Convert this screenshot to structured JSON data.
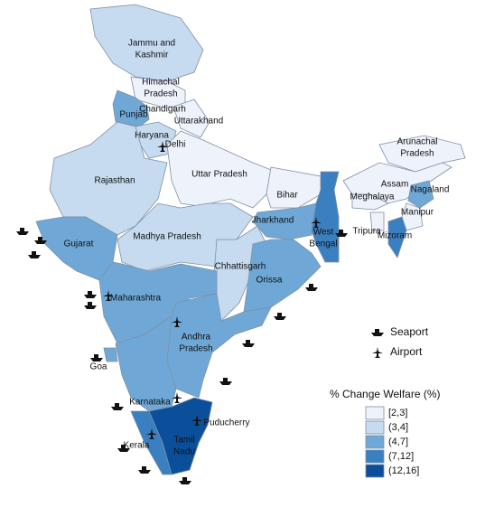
{
  "map": {
    "regions": [
      {
        "label": [
          "Jammu and",
          "Kashmir"
        ],
        "class": "(3,4]"
      },
      {
        "label": [
          "Himachal",
          "Pradesh"
        ],
        "class": "[2,3]"
      },
      {
        "label": [
          "Punjab"
        ],
        "class": "(4,7]"
      },
      {
        "label": [
          "Chandigarh"
        ]
      },
      {
        "label": [
          "Uttarakhand"
        ],
        "class": "[2,3]"
      },
      {
        "label": [
          "Haryana"
        ],
        "class": "(3,4]"
      },
      {
        "label": [
          "Delhi"
        ]
      },
      {
        "label": [
          "Rajasthan"
        ],
        "class": "(3,4]"
      },
      {
        "label": [
          "Uttar Pradesh"
        ],
        "class": "[2,3]"
      },
      {
        "label": [
          "Bihar"
        ],
        "class": "[2,3]"
      },
      {
        "label": [
          "Arunachal",
          "Pradesh"
        ],
        "class": "[2,3]"
      },
      {
        "label": [
          "Assam"
        ],
        "class": "[2,3]"
      },
      {
        "label": [
          "Meghalaya"
        ],
        "class": "[2,3]"
      },
      {
        "label": [
          "Nagaland"
        ],
        "class": "(4,7]"
      },
      {
        "label": [
          "Manipur"
        ],
        "class": "[2,3]"
      },
      {
        "label": [
          "Tripura"
        ],
        "class": "[2,3]"
      },
      {
        "label": [
          "Mizoram"
        ],
        "class": "(7,12]"
      },
      {
        "label": [
          "Gujarat"
        ],
        "class": "(4,7]"
      },
      {
        "label": [
          "Madhya Pradesh"
        ],
        "class": "(3,4]"
      },
      {
        "label": [
          "Jharkhand"
        ],
        "class": "(4,7]"
      },
      {
        "label": [
          "West",
          "Bengal"
        ],
        "class": "(7,12]"
      },
      {
        "label": [
          "Chhattisgarh"
        ],
        "class": "(3,4]"
      },
      {
        "label": [
          "Orissa"
        ],
        "class": "(4,7]"
      },
      {
        "label": [
          "Maharashtra"
        ],
        "class": "(4,7]"
      },
      {
        "label": [
          "Andhra",
          "Pradesh"
        ],
        "class": "(4,7]"
      },
      {
        "label": [
          "Goa"
        ],
        "class": "(4,7]"
      },
      {
        "label": [
          "Karnataka"
        ],
        "class": "(4,7]"
      },
      {
        "label": [
          "Puducherry"
        ]
      },
      {
        "label": [
          "Tamil",
          "Nadu"
        ],
        "class": "(12,16]"
      },
      {
        "label": [
          "Kerala"
        ],
        "class": "(7,12]"
      }
    ]
  },
  "legend": {
    "symbols": [
      "Seaport",
      "Airport"
    ],
    "title": "% Change Welfare (%)",
    "classes": [
      {
        "label": "[2,3]",
        "color": "#eef3fb"
      },
      {
        "label": "(3,4]",
        "color": "#c6dbef"
      },
      {
        "label": "(4,7]",
        "color": "#6fa8d6"
      },
      {
        "label": "(7,12]",
        "color": "#3a7fc0"
      },
      {
        "label": "(12,16]",
        "color": "#0b4f9a"
      }
    ]
  }
}
